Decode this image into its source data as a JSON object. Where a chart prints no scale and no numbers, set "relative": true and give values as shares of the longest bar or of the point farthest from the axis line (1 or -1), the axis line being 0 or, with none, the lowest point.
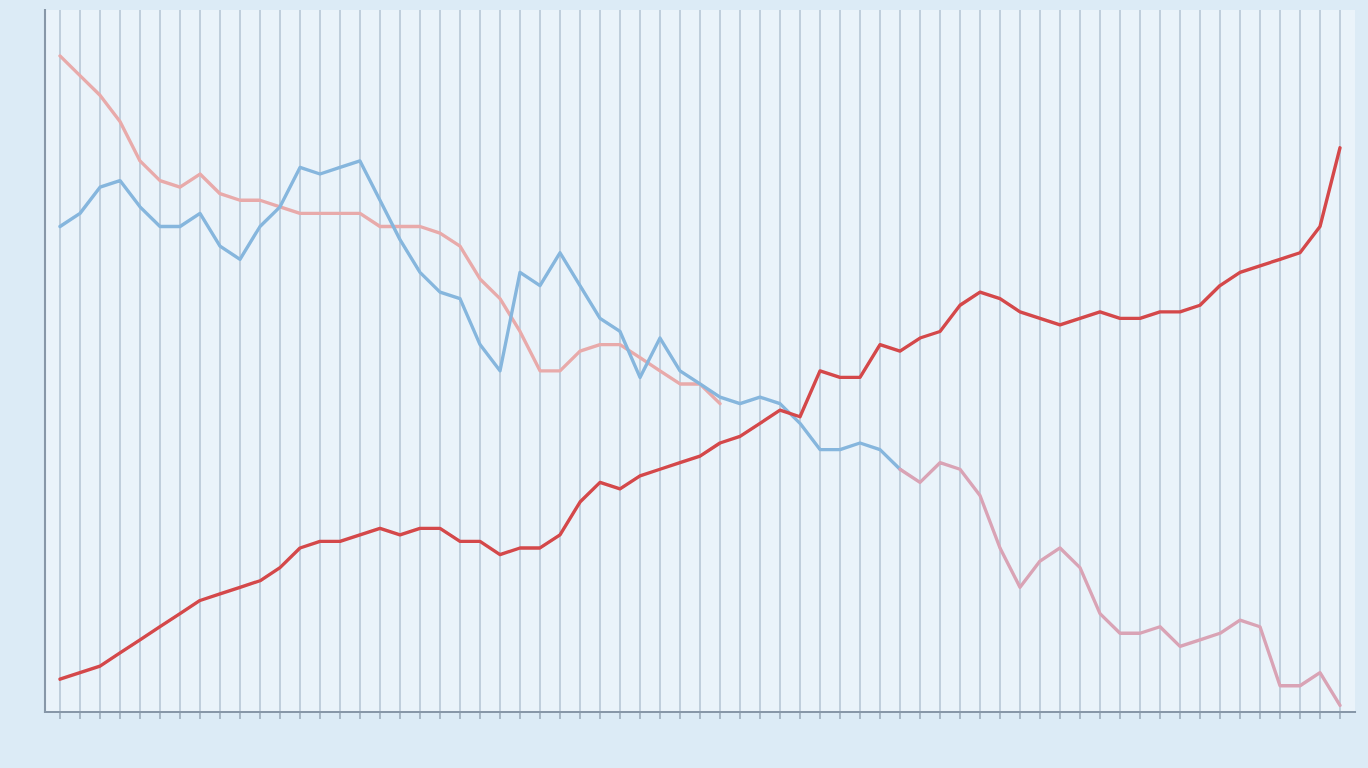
{
  "chart_data": {
    "type": "line",
    "relative": true,
    "grid": "x",
    "line_style": "solid",
    "categories": [
      null,
      null,
      null,
      null,
      null,
      null,
      null,
      null,
      null,
      null,
      null,
      null,
      null,
      null,
      null,
      null,
      null,
      null,
      null,
      null,
      null,
      null,
      null,
      null,
      null,
      null,
      null,
      null,
      null,
      null,
      null,
      null,
      null,
      null,
      null,
      null,
      null,
      null,
      null,
      null,
      null,
      null,
      null,
      null,
      null,
      null,
      null,
      null,
      null,
      null,
      null,
      null,
      null,
      null,
      null,
      null,
      null,
      null,
      null,
      null,
      null,
      null,
      null,
      null,
      null
    ],
    "series": [
      {
        "color": "#e8aaaa",
        "values": [
          1.0,
          0.97,
          0.94,
          0.9,
          0.84,
          0.81,
          0.8,
          0.82,
          0.79,
          0.78,
          0.78,
          0.77,
          0.76,
          0.76,
          0.76,
          0.76,
          0.74,
          0.74,
          0.74,
          0.73,
          0.71,
          0.66,
          0.63,
          0.58,
          0.52,
          0.52,
          0.55,
          0.56,
          0.56,
          0.54,
          0.52,
          0.5,
          0.5,
          0.47,
          null,
          null,
          null,
          null,
          null,
          null,
          null,
          null,
          null,
          null,
          null,
          null,
          null,
          null,
          null,
          null,
          null,
          null,
          null,
          null,
          null,
          null,
          null,
          null,
          null,
          null,
          null,
          null,
          null,
          null,
          null
        ]
      },
      {
        "color": "#86b6dd",
        "values": [
          0.74,
          0.76,
          0.8,
          0.81,
          0.77,
          0.74,
          0.74,
          0.76,
          0.71,
          0.69,
          0.74,
          0.77,
          0.83,
          0.82,
          0.83,
          0.84,
          0.78,
          0.72,
          0.67,
          0.64,
          0.63,
          0.56,
          0.52,
          0.67,
          0.65,
          0.7,
          0.65,
          0.6,
          0.58,
          0.51,
          0.57,
          0.52,
          0.5,
          0.48,
          0.47,
          0.48,
          0.47,
          0.44,
          0.4,
          0.4,
          0.41,
          0.4,
          0.37,
          null,
          null,
          null,
          null,
          null,
          null,
          null,
          null,
          null,
          null,
          null,
          null,
          null,
          null,
          null,
          null,
          null,
          null,
          null,
          null,
          null,
          null
        ]
      },
      {
        "color": "#d9a3b5",
        "values": [
          null,
          null,
          null,
          null,
          null,
          null,
          null,
          null,
          null,
          null,
          null,
          null,
          null,
          null,
          null,
          null,
          null,
          null,
          null,
          null,
          null,
          null,
          null,
          null,
          null,
          null,
          null,
          null,
          null,
          null,
          null,
          null,
          null,
          null,
          null,
          null,
          null,
          null,
          null,
          null,
          null,
          null,
          0.37,
          0.35,
          0.38,
          0.37,
          0.33,
          0.25,
          0.19,
          0.23,
          0.25,
          0.22,
          0.15,
          0.12,
          0.12,
          0.13,
          0.1,
          0.11,
          0.12,
          0.14,
          0.13,
          0.04,
          0.04,
          0.06,
          0.01
        ]
      },
      {
        "color": "#d4484a",
        "values": [
          0.05,
          0.06,
          0.07,
          0.09,
          0.11,
          0.13,
          0.15,
          0.17,
          0.18,
          0.19,
          0.2,
          0.22,
          0.25,
          0.26,
          0.26,
          0.27,
          0.28,
          0.27,
          0.28,
          0.28,
          0.26,
          0.26,
          0.24,
          0.25,
          0.25,
          0.27,
          0.32,
          0.35,
          0.34,
          0.36,
          0.37,
          0.38,
          0.39,
          0.41,
          0.42,
          0.44,
          0.46,
          0.45,
          0.52,
          0.51,
          0.51,
          0.56,
          0.55,
          0.57,
          0.58,
          0.62,
          0.64,
          0.63,
          0.61,
          0.6,
          0.59,
          0.6,
          0.61,
          0.6,
          0.6,
          0.61,
          0.61,
          0.62,
          0.65,
          0.67,
          0.68,
          0.69,
          0.7,
          0.74,
          0.86
        ]
      }
    ]
  }
}
